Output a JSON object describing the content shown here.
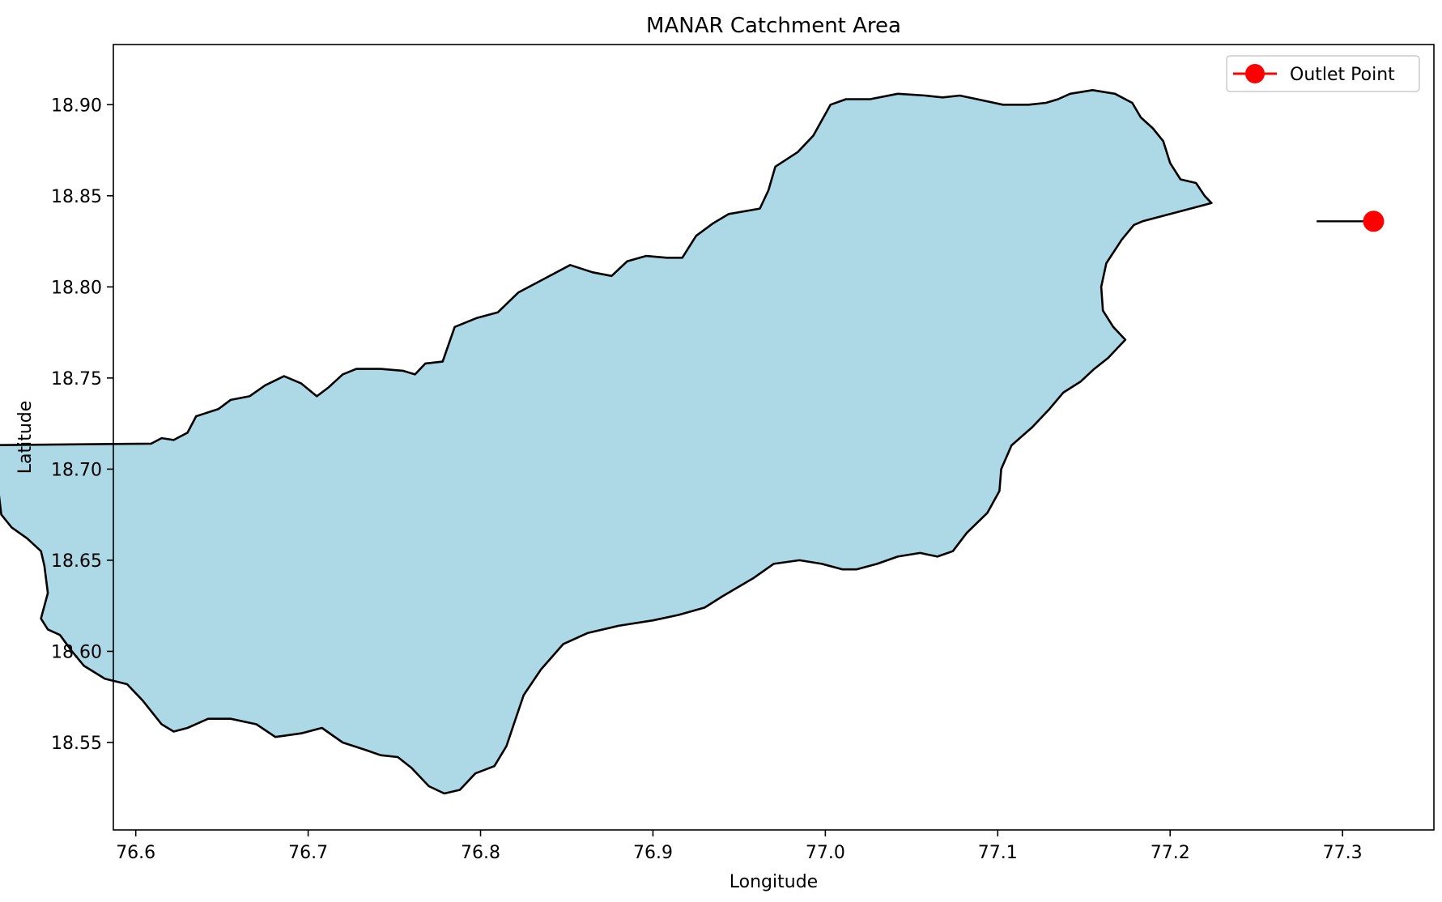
{
  "chart_data": {
    "type": "map",
    "title": "MANAR Catchment Area",
    "xlabel": "Longitude",
    "ylabel": "Latitude",
    "xlim": [
      76.587,
      77.353
    ],
    "ylim": [
      18.502,
      18.933
    ],
    "xticks": [
      76.6,
      76.7,
      76.8,
      76.9,
      77.0,
      77.1,
      77.2,
      77.3
    ],
    "xtick_labels": [
      "76.6",
      "76.7",
      "76.8",
      "76.9",
      "77.0",
      "77.1",
      "77.2",
      "77.3"
    ],
    "yticks": [
      18.55,
      18.6,
      18.65,
      18.7,
      18.75,
      18.8,
      18.85,
      18.9
    ],
    "ytick_labels": [
      "18.55",
      "18.60",
      "18.65",
      "18.70",
      "18.75",
      "18.80",
      "18.85",
      "18.90"
    ],
    "grid": false,
    "legend": {
      "position": "top-right",
      "entries": [
        "Outlet Point"
      ]
    },
    "catchment": {
      "fill": "#add8e6",
      "edge": "#000000",
      "boundary": [
        [
          76.609,
          18.714
        ],
        [
          76.615,
          18.717
        ],
        [
          76.622,
          18.716
        ],
        [
          76.63,
          18.72
        ],
        [
          76.635,
          18.729
        ],
        [
          76.648,
          18.733
        ],
        [
          76.655,
          18.738
        ],
        [
          76.666,
          18.74
        ],
        [
          76.675,
          18.746
        ],
        [
          76.686,
          18.751
        ],
        [
          76.696,
          18.747
        ],
        [
          76.705,
          18.74
        ],
        [
          76.712,
          18.745
        ],
        [
          76.72,
          18.752
        ],
        [
          76.728,
          18.755
        ],
        [
          76.742,
          18.755
        ],
        [
          76.755,
          18.754
        ],
        [
          76.762,
          18.752
        ],
        [
          76.768,
          18.758
        ],
        [
          76.778,
          18.759
        ],
        [
          76.785,
          18.778
        ],
        [
          76.798,
          18.783
        ],
        [
          76.81,
          18.786
        ],
        [
          76.822,
          18.797
        ],
        [
          76.838,
          18.805
        ],
        [
          76.852,
          18.812
        ],
        [
          76.865,
          18.808
        ],
        [
          76.876,
          18.806
        ],
        [
          76.885,
          18.814
        ],
        [
          76.896,
          18.817
        ],
        [
          76.908,
          18.816
        ],
        [
          76.917,
          18.816
        ],
        [
          76.925,
          18.828
        ],
        [
          76.935,
          18.835
        ],
        [
          76.944,
          18.84
        ],
        [
          76.962,
          18.843
        ],
        [
          76.967,
          18.853
        ],
        [
          76.971,
          18.866
        ],
        [
          76.984,
          18.874
        ],
        [
          76.993,
          18.883
        ],
        [
          77.003,
          18.9
        ],
        [
          77.012,
          18.903
        ],
        [
          77.026,
          18.903
        ],
        [
          77.042,
          18.906
        ],
        [
          77.058,
          18.905
        ],
        [
          77.068,
          18.904
        ],
        [
          77.078,
          18.905
        ],
        [
          77.088,
          18.903
        ],
        [
          77.103,
          18.9
        ],
        [
          77.118,
          18.9
        ],
        [
          77.128,
          18.901
        ],
        [
          77.135,
          18.903
        ],
        [
          77.142,
          18.906
        ],
        [
          77.155,
          18.908
        ],
        [
          77.168,
          18.906
        ],
        [
          77.178,
          18.901
        ],
        [
          77.183,
          18.893
        ],
        [
          77.19,
          18.887
        ],
        [
          77.196,
          18.88
        ],
        [
          77.2,
          18.868
        ],
        [
          77.206,
          18.859
        ],
        [
          77.215,
          18.857
        ],
        [
          77.22,
          18.85
        ],
        [
          77.224,
          18.846
        ],
        [
          77.184,
          18.836
        ],
        [
          77.179,
          18.834
        ],
        [
          77.172,
          18.826
        ],
        [
          77.163,
          18.813
        ],
        [
          77.16,
          18.8
        ],
        [
          77.161,
          18.787
        ],
        [
          77.167,
          18.778
        ],
        [
          77.174,
          18.771
        ],
        [
          77.17,
          18.767
        ],
        [
          77.164,
          18.761
        ],
        [
          77.156,
          18.755
        ],
        [
          77.148,
          18.748
        ],
        [
          77.138,
          18.742
        ],
        [
          77.13,
          18.733
        ],
        [
          77.12,
          18.723
        ],
        [
          77.108,
          18.713
        ],
        [
          77.102,
          18.7
        ],
        [
          77.101,
          18.688
        ],
        [
          77.094,
          18.676
        ],
        [
          77.082,
          18.665
        ],
        [
          77.074,
          18.655
        ],
        [
          77.065,
          18.652
        ],
        [
          77.055,
          18.654
        ],
        [
          77.042,
          18.652
        ],
        [
          77.03,
          18.648
        ],
        [
          77.018,
          18.645
        ],
        [
          77.01,
          18.645
        ],
        [
          76.998,
          18.648
        ],
        [
          76.985,
          18.65
        ],
        [
          76.97,
          18.648
        ],
        [
          76.958,
          18.64
        ],
        [
          76.94,
          18.63
        ],
        [
          76.93,
          18.624
        ],
        [
          76.915,
          18.62
        ],
        [
          76.9,
          18.617
        ],
        [
          76.88,
          18.614
        ],
        [
          76.862,
          18.61
        ],
        [
          76.848,
          18.604
        ],
        [
          76.835,
          18.59
        ],
        [
          76.825,
          18.576
        ],
        [
          76.82,
          18.562
        ],
        [
          76.815,
          18.548
        ],
        [
          76.808,
          18.537
        ],
        [
          76.797,
          18.533
        ],
        [
          76.788,
          18.524
        ],
        [
          76.779,
          18.522
        ],
        [
          76.77,
          18.526
        ],
        [
          76.76,
          18.536
        ],
        [
          76.752,
          18.542
        ],
        [
          76.742,
          18.543
        ],
        [
          76.733,
          18.546
        ],
        [
          76.72,
          18.55
        ],
        [
          76.708,
          18.558
        ],
        [
          76.696,
          18.555
        ],
        [
          76.681,
          18.553
        ],
        [
          76.67,
          18.56
        ],
        [
          76.655,
          18.563
        ],
        [
          76.642,
          18.563
        ],
        [
          76.63,
          18.558
        ],
        [
          76.622,
          18.556
        ],
        [
          76.615,
          18.56
        ],
        [
          76.604,
          18.573
        ],
        [
          76.595,
          18.582
        ],
        [
          76.582,
          18.585
        ],
        [
          76.57,
          18.592
        ],
        [
          76.563,
          18.6
        ],
        [
          76.556,
          18.609
        ],
        [
          76.549,
          18.612
        ],
        [
          76.545,
          18.618
        ],
        [
          76.549,
          18.632
        ],
        [
          76.547,
          18.647
        ],
        [
          76.545,
          18.655
        ],
        [
          76.537,
          18.662
        ],
        [
          76.528,
          18.668
        ],
        [
          76.522,
          18.675
        ],
        [
          76.52,
          18.691
        ],
        [
          76.519,
          18.7
        ],
        [
          76.512,
          18.706
        ],
        [
          76.505,
          18.71
        ],
        [
          76.499,
          18.713
        ],
        [
          76.609,
          18.714
        ]
      ]
    },
    "outlet": {
      "name": "Outlet Point",
      "lon": 77.318,
      "lat": 18.836,
      "color": "#ff0000"
    }
  }
}
